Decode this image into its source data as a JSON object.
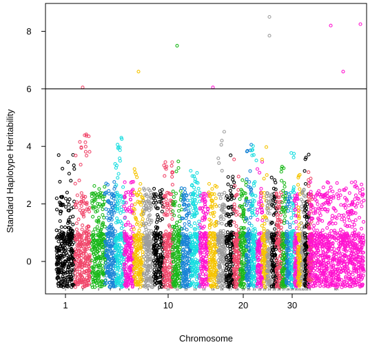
{
  "chart_data": {
    "type": "scatter",
    "title": "",
    "xlabel": "Chromosome",
    "ylabel": "Standard Haplotype Heritability",
    "ylim": [
      -1,
      9
    ],
    "threshold": 6,
    "x_ticks": [
      "1",
      "10",
      "20",
      "30"
    ],
    "y_ticks": [
      "0",
      "2",
      "4",
      "6",
      "8"
    ],
    "grid": false,
    "legend": "none",
    "chromosome_labels": [
      "1",
      "2",
      "3",
      "4",
      "5",
      "6",
      "7",
      "8",
      "9",
      "10",
      "11",
      "12",
      "13",
      "14",
      "15",
      "16",
      "17",
      "18",
      "19",
      "20",
      "21",
      "22",
      "23",
      "24",
      "25",
      "26",
      "27",
      "28",
      "29",
      "30",
      "31",
      "32",
      "33",
      "X",
      "NA"
    ],
    "palette": [
      "#000000",
      "#f0476b",
      "#1ab81a",
      "#1a85d6",
      "#18dde0",
      "#ff14d0",
      "#f5c400",
      "#9c9c9c"
    ],
    "significant_points": [
      {
        "chromosome": "2",
        "value": 6.05,
        "color": "#f0476b"
      },
      {
        "chromosome": "7",
        "value": 6.6,
        "color": "#f5c400"
      },
      {
        "chromosome": "11",
        "value": 7.5,
        "color": "#1ab81a"
      },
      {
        "chromosome": "15",
        "value": 6.05,
        "color": "#ff14d0"
      },
      {
        "chromosome": "24",
        "value": 8.5,
        "color": "#9c9c9c"
      },
      {
        "chromosome": "24",
        "value": 7.85,
        "color": "#9c9c9c"
      },
      {
        "chromosome": "NA",
        "value": 8.2,
        "color": "#ff14d0"
      },
      {
        "chromosome": "NA",
        "value": 6.6,
        "color": "#ff14d0"
      },
      {
        "chromosome": "NA",
        "value": 8.25,
        "color": "#ff14d0"
      }
    ]
  }
}
